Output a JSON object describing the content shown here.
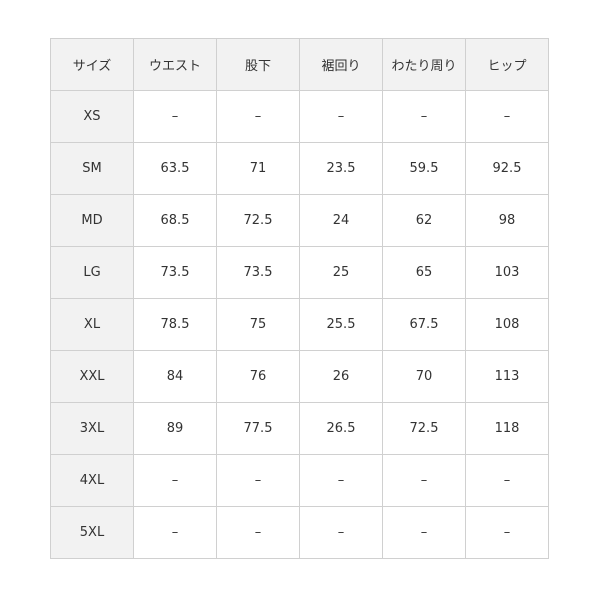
{
  "table": {
    "header": [
      "サイズ",
      "ウエスト",
      "股下",
      "裾回り",
      "わたり周り",
      "ヒップ"
    ],
    "rows": [
      [
        "XS",
        "–",
        "–",
        "–",
        "–",
        "–"
      ],
      [
        "SM",
        63.5,
        71,
        23.5,
        59.5,
        92.5
      ],
      [
        "MD",
        68.5,
        72.5,
        24,
        62,
        98
      ],
      [
        "LG",
        73.5,
        73.5,
        25,
        65,
        103
      ],
      [
        "XL",
        78.5,
        75,
        25.5,
        67.5,
        108
      ],
      [
        "XXL",
        84,
        76,
        26,
        70,
        113
      ],
      [
        "3XL",
        89,
        77.5,
        26.5,
        72.5,
        118
      ],
      [
        "4XL",
        "–",
        "–",
        "–",
        "–",
        "–"
      ],
      [
        "5XL",
        "–",
        "–",
        "–",
        "–",
        "–"
      ]
    ]
  }
}
